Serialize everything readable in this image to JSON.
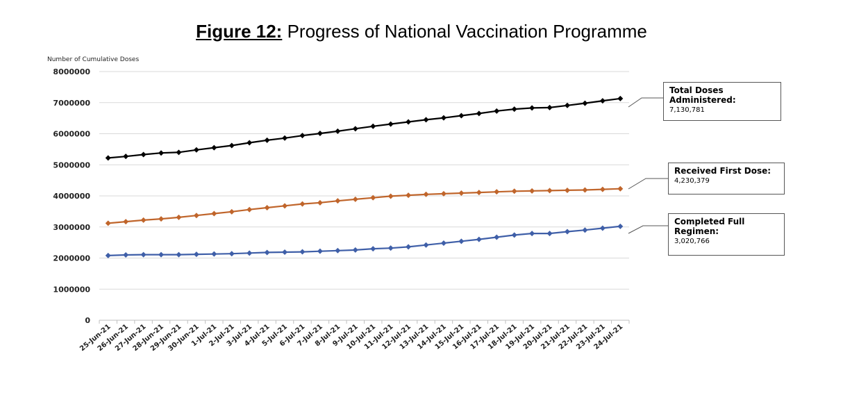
{
  "title": {
    "prefix": "Figure 12:",
    "text": " Progress of National Vaccination Programme"
  },
  "chart_data": {
    "type": "line",
    "title": "Figure 12: Progress of National Vaccination Programme",
    "ylabel": "Number of Cumulative Doses",
    "xlabel": "",
    "ylim": [
      0,
      8000000
    ],
    "yticks": [
      0,
      1000000,
      2000000,
      3000000,
      4000000,
      5000000,
      6000000,
      7000000,
      8000000
    ],
    "grid": true,
    "categories": [
      "25-Jun-21",
      "26-Jun-21",
      "27-Jun-21",
      "28-Jun-21",
      "29-Jun-21",
      "30-Jun-21",
      "1-Jul-21",
      "2-Jul-21",
      "3-Jul-21",
      "4-Jul-21",
      "5-Jul-21",
      "6-Jul-21",
      "7-Jul-21",
      "8-Jul-21",
      "9-Jul-21",
      "10-Jul-21",
      "11-Jul-21",
      "12-Jul-21",
      "13-Jul-21",
      "14-Jul-21",
      "15-Jul-21",
      "16-Jul-21",
      "17-Jul-21",
      "18-Jul-21",
      "19-Jul-21",
      "20-Jul-21",
      "21-Jul-21",
      "22-Jul-21",
      "23-Jul-21",
      "24-Jul-21"
    ],
    "series": [
      {
        "name": "Total Doses Administered:",
        "callout_value": "7,130,781",
        "color": "#000000",
        "values": [
          5220000,
          5270000,
          5330000,
          5380000,
          5400000,
          5480000,
          5550000,
          5620000,
          5710000,
          5790000,
          5860000,
          5940000,
          6010000,
          6080000,
          6160000,
          6240000,
          6310000,
          6380000,
          6450000,
          6510000,
          6580000,
          6650000,
          6730000,
          6790000,
          6830000,
          6840000,
          6910000,
          6980000,
          7060000,
          7130781
        ]
      },
      {
        "name": "Received First Dose:",
        "callout_value": "4,230,379",
        "color": "#c0652b",
        "values": [
          3120000,
          3170000,
          3220000,
          3260000,
          3310000,
          3370000,
          3430000,
          3490000,
          3560000,
          3620000,
          3680000,
          3740000,
          3780000,
          3840000,
          3890000,
          3940000,
          3990000,
          4020000,
          4050000,
          4070000,
          4090000,
          4110000,
          4130000,
          4150000,
          4160000,
          4170000,
          4180000,
          4190000,
          4210000,
          4230379
        ]
      },
      {
        "name": "Completed Full Regimen:",
        "callout_value": "3,020,766",
        "color": "#3f5fa8",
        "values": [
          2080000,
          2100000,
          2110000,
          2110000,
          2110000,
          2120000,
          2130000,
          2140000,
          2160000,
          2180000,
          2190000,
          2200000,
          2220000,
          2240000,
          2260000,
          2300000,
          2320000,
          2360000,
          2420000,
          2480000,
          2540000,
          2600000,
          2670000,
          2740000,
          2790000,
          2790000,
          2850000,
          2900000,
          2960000,
          3020766
        ]
      }
    ]
  }
}
